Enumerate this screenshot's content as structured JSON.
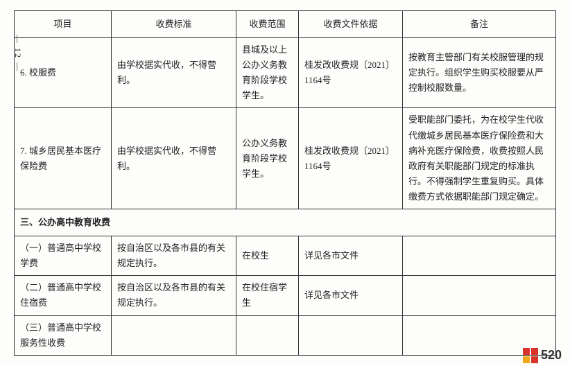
{
  "pageNumber": "— 12 —",
  "headers": {
    "item": "项目",
    "standard": "收费标准",
    "scope": "收费范围",
    "basis": "收费文件依据",
    "note": "备注"
  },
  "rows": [
    {
      "item": "6. 校服费",
      "standard": "由学校据实代收，不得营利。",
      "scope": "县城及以上公办义务教育阶段学校学生。",
      "basis": "桂发改收费规〔2021〕1164号",
      "note": "按教育主管部门有关校服管理的规定执行。组织学生购买校服要从严控制校服数量。"
    },
    {
      "item": "7. 城乡居民基本医疗保险费",
      "standard": "由学校据实代收，不得营利。",
      "scope": "公办义务教育阶段学校学生。",
      "basis": "桂发改收费规〔2021〕1164号",
      "note": "受职能部门委托，为在校学生代收代缴城乡居民基本医疗保险费和大病补充医疗保险费，收费按照人民政府有关职能部门规定的标准执行。不得强制学生重复购买。具体缴费方式依据职能部门规定确定。"
    }
  ],
  "sectionHeader": "三、公办高中教育收费",
  "subRows": [
    {
      "item": "（一）普通高中学校学费",
      "standard": "按自治区以及各市县的有关规定执行。",
      "scope": "在校生",
      "basis": "详见各市文件",
      "note": ""
    },
    {
      "item": "（二）普通高中学校住宿费",
      "standard": "按自治区以及各市县的有关规定执行。",
      "scope": "在校住宿学生",
      "basis": "详见各市文件",
      "note": ""
    },
    {
      "item": "（三）普通高中学校服务性收费",
      "standard": "",
      "scope": "",
      "basis": "",
      "note": ""
    }
  ],
  "watermarkText": "520"
}
